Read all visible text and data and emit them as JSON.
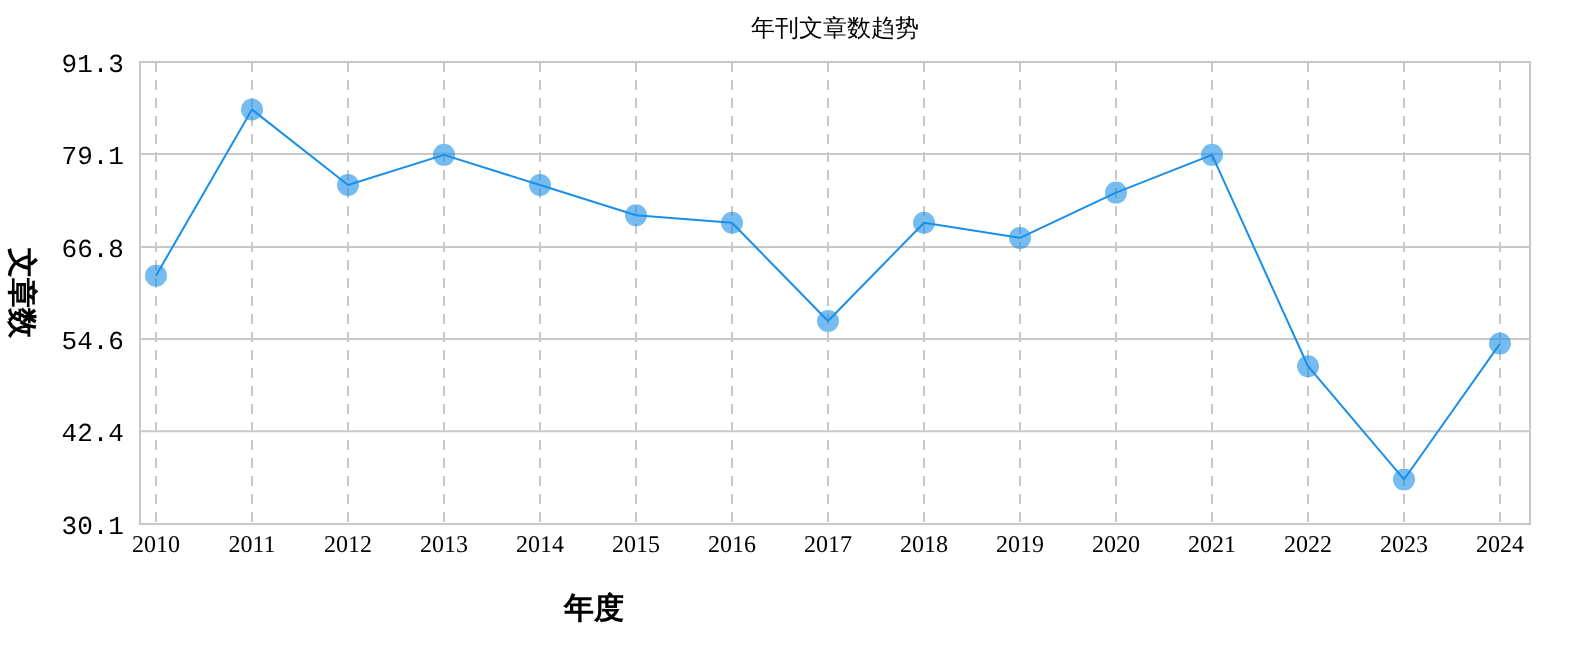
{
  "chart_data": {
    "type": "line",
    "title": "年刊文章数趋势",
    "xlabel": "年度",
    "ylabel": "文章数",
    "categories": [
      "2010",
      "2011",
      "2012",
      "2013",
      "2014",
      "2015",
      "2016",
      "2017",
      "2018",
      "2019",
      "2020",
      "2021",
      "2022",
      "2023",
      "2024"
    ],
    "series": [
      {
        "color": "#1a8fe8",
        "values": [
          63,
          85,
          75,
          79,
          75,
          71,
          70,
          57,
          70,
          68,
          74,
          79,
          51,
          36,
          54
        ]
      }
    ],
    "ylim": [
      30.1,
      91.3
    ],
    "yticks": [
      30.1,
      42.4,
      54.6,
      66.8,
      79.1,
      91.3
    ],
    "grid": true,
    "marker": "circle",
    "line_style": "solid"
  }
}
